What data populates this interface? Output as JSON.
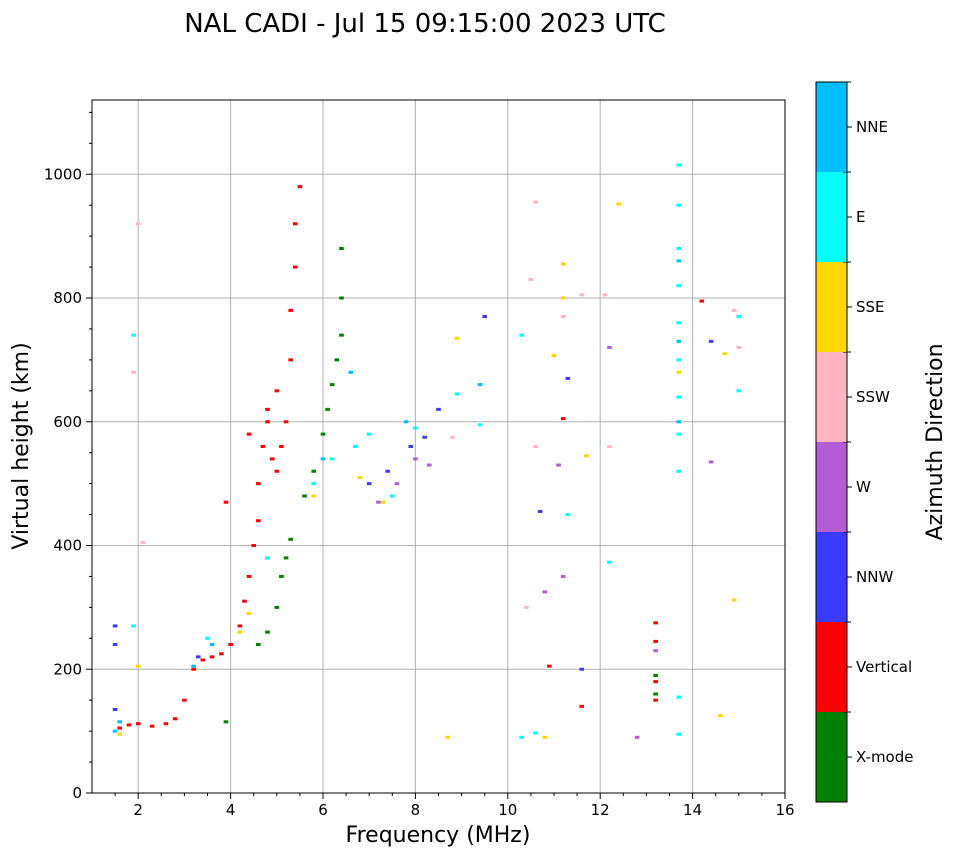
{
  "chart_data": {
    "type": "scatter",
    "title": "NAL CADI - Jul 15 09:15:00 2023 UTC",
    "xlabel": "Frequency (MHz)",
    "ylabel": "Virtual height (km)",
    "xlim": [
      1,
      16
    ],
    "ylim": [
      0,
      1120
    ],
    "xticks": [
      2,
      4,
      6,
      8,
      10,
      12,
      14,
      16
    ],
    "yticks": [
      0,
      200,
      400,
      600,
      800,
      1000
    ],
    "grid": true,
    "colorbar": {
      "title": "Azimuth Direction",
      "categories": [
        {
          "name": "X-mode",
          "color": "#008000"
        },
        {
          "name": "Vertical",
          "color": "#ff0000"
        },
        {
          "name": "NNW",
          "color": "#3b3bff"
        },
        {
          "name": "W",
          "color": "#b45bd6"
        },
        {
          "name": "SSW",
          "color": "#ffb6c1"
        },
        {
          "name": "SSE",
          "color": "#ffd700"
        },
        {
          "name": "E",
          "color": "#00ffff"
        },
        {
          "name": "NNE",
          "color": "#00bfff"
        }
      ]
    },
    "series": [
      {
        "name": "Vertical",
        "color": "#ff0000",
        "points": [
          [
            1.6,
            105
          ],
          [
            1.8,
            110
          ],
          [
            2.0,
            112
          ],
          [
            2.3,
            108
          ],
          [
            2.6,
            112
          ],
          [
            2.8,
            120
          ],
          [
            3.0,
            150
          ],
          [
            3.2,
            200
          ],
          [
            3.4,
            215
          ],
          [
            3.6,
            220
          ],
          [
            3.8,
            225
          ],
          [
            4.0,
            240
          ],
          [
            4.2,
            270
          ],
          [
            4.3,
            310
          ],
          [
            4.4,
            350
          ],
          [
            4.5,
            400
          ],
          [
            4.6,
            440
          ],
          [
            4.6,
            500
          ],
          [
            4.7,
            560
          ],
          [
            4.8,
            600
          ],
          [
            4.9,
            540
          ],
          [
            5.0,
            520
          ],
          [
            5.1,
            560
          ],
          [
            5.2,
            600
          ],
          [
            5.3,
            700
          ],
          [
            5.3,
            780
          ],
          [
            5.4,
            850
          ],
          [
            5.4,
            920
          ],
          [
            5.5,
            980
          ],
          [
            4.8,
            620
          ],
          [
            5.0,
            650
          ],
          [
            4.4,
            580
          ],
          [
            3.9,
            470
          ],
          [
            13.2,
            275
          ],
          [
            13.2,
            245
          ],
          [
            13.2,
            180
          ],
          [
            13.2,
            150
          ],
          [
            14.2,
            795
          ],
          [
            11.2,
            605
          ],
          [
            11.6,
            140
          ],
          [
            10.9,
            205
          ]
        ]
      },
      {
        "name": "X-mode",
        "color": "#008000",
        "points": [
          [
            4.6,
            240
          ],
          [
            4.8,
            260
          ],
          [
            5.0,
            300
          ],
          [
            5.1,
            350
          ],
          [
            5.2,
            380
          ],
          [
            5.3,
            410
          ],
          [
            5.6,
            480
          ],
          [
            5.8,
            520
          ],
          [
            6.0,
            580
          ],
          [
            6.1,
            620
          ],
          [
            6.2,
            660
          ],
          [
            6.3,
            700
          ],
          [
            6.4,
            740
          ],
          [
            6.4,
            800
          ],
          [
            6.4,
            880
          ],
          [
            13.2,
            190
          ],
          [
            13.2,
            160
          ],
          [
            3.9,
            115
          ]
        ]
      },
      {
        "name": "NNW",
        "color": "#3b3bff",
        "points": [
          [
            1.5,
            270
          ],
          [
            1.5,
            240
          ],
          [
            1.5,
            135
          ],
          [
            3.3,
            220
          ],
          [
            7.0,
            500
          ],
          [
            7.4,
            520
          ],
          [
            7.9,
            560
          ],
          [
            8.2,
            575
          ],
          [
            8.5,
            620
          ],
          [
            10.7,
            455
          ],
          [
            11.3,
            670
          ],
          [
            11.6,
            200
          ],
          [
            14.4,
            730
          ],
          [
            9.5,
            770
          ]
        ]
      },
      {
        "name": "W",
        "color": "#b45bd6",
        "points": [
          [
            7.2,
            470
          ],
          [
            7.6,
            500
          ],
          [
            8.0,
            540
          ],
          [
            8.3,
            530
          ],
          [
            10.8,
            325
          ],
          [
            11.2,
            350
          ],
          [
            12.8,
            90
          ],
          [
            13.2,
            230
          ],
          [
            14.4,
            535
          ],
          [
            11.1,
            530
          ],
          [
            12.2,
            720
          ]
        ]
      },
      {
        "name": "SSW",
        "color": "#ffb6c1",
        "points": [
          [
            2.0,
            920
          ],
          [
            1.9,
            680
          ],
          [
            2.1,
            405
          ],
          [
            8.8,
            575
          ],
          [
            10.4,
            300
          ],
          [
            10.5,
            830
          ],
          [
            10.6,
            955
          ],
          [
            10.6,
            560
          ],
          [
            11.2,
            770
          ],
          [
            11.6,
            805
          ],
          [
            12.2,
            560
          ],
          [
            14.9,
            780
          ],
          [
            15.0,
            720
          ],
          [
            12.1,
            805
          ]
        ]
      },
      {
        "name": "SSE",
        "color": "#ffd700",
        "points": [
          [
            1.6,
            95
          ],
          [
            2.0,
            205
          ],
          [
            4.2,
            260
          ],
          [
            4.4,
            290
          ],
          [
            5.8,
            480
          ],
          [
            6.8,
            510
          ],
          [
            7.3,
            470
          ],
          [
            8.9,
            735
          ],
          [
            8.7,
            90
          ],
          [
            10.8,
            90
          ],
          [
            11.2,
            855
          ],
          [
            11.2,
            800
          ],
          [
            11.0,
            707
          ],
          [
            11.7,
            545
          ],
          [
            12.4,
            952
          ],
          [
            14.7,
            710
          ],
          [
            14.6,
            125
          ],
          [
            13.7,
            680
          ],
          [
            14.9,
            312
          ]
        ]
      },
      {
        "name": "E",
        "color": "#00ffff",
        "points": [
          [
            1.9,
            740
          ],
          [
            1.9,
            270
          ],
          [
            3.5,
            250
          ],
          [
            4.8,
            380
          ],
          [
            5.8,
            500
          ],
          [
            6.2,
            540
          ],
          [
            6.7,
            560
          ],
          [
            7.0,
            580
          ],
          [
            7.5,
            480
          ],
          [
            8.0,
            590
          ],
          [
            8.9,
            645
          ],
          [
            9.4,
            595
          ],
          [
            10.3,
            740
          ],
          [
            10.3,
            90
          ],
          [
            10.6,
            97
          ],
          [
            11.3,
            450
          ],
          [
            12.2,
            373
          ],
          [
            13.7,
            1015
          ],
          [
            13.7,
            950
          ],
          [
            13.7,
            880
          ],
          [
            13.7,
            820
          ],
          [
            13.7,
            760
          ],
          [
            13.7,
            700
          ],
          [
            13.7,
            640
          ],
          [
            13.7,
            580
          ],
          [
            13.7,
            520
          ],
          [
            13.7,
            155
          ],
          [
            13.7,
            95
          ],
          [
            15.0,
            650
          ],
          [
            15.0,
            770
          ]
        ]
      },
      {
        "name": "NNE",
        "color": "#00bfff",
        "points": [
          [
            1.5,
            100
          ],
          [
            1.6,
            115
          ],
          [
            3.2,
            205
          ],
          [
            3.6,
            240
          ],
          [
            6.0,
            540
          ],
          [
            6.6,
            680
          ],
          [
            7.8,
            600
          ],
          [
            9.4,
            660
          ],
          [
            13.7,
            860
          ],
          [
            13.7,
            730
          ],
          [
            13.7,
            600
          ]
        ]
      }
    ]
  }
}
